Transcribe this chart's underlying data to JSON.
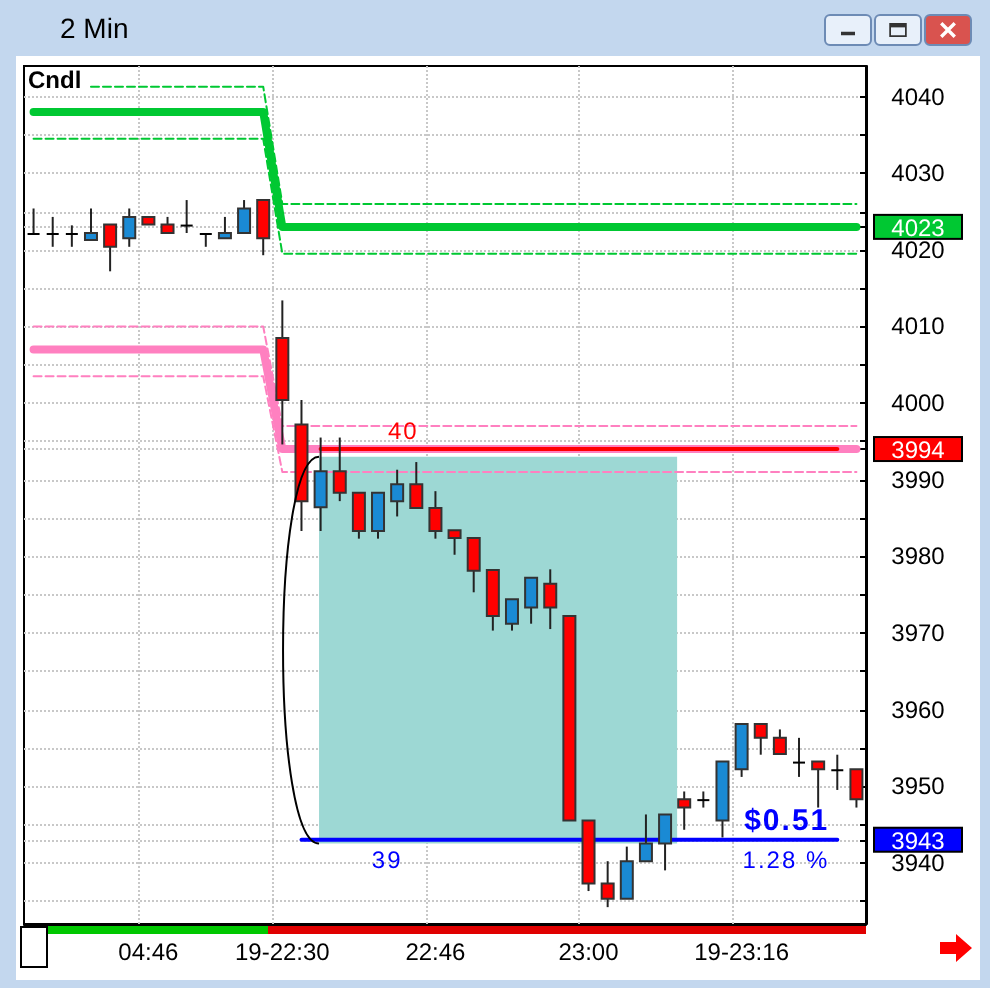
{
  "chart_data": {
    "type": "candlestick",
    "title": "2 Min",
    "subtitle": "Cndl",
    "categories": [
      null,
      null,
      null,
      null,
      null,
      null,
      "04:46",
      null,
      null,
      null,
      null,
      null,
      null,
      "19-22:30",
      null,
      null,
      null,
      null,
      null,
      null,
      null,
      "22:46",
      null,
      null,
      null,
      null,
      null,
      null,
      null,
      "23:00",
      null,
      null,
      null,
      null,
      null,
      null,
      null,
      "19-23:16",
      null,
      null,
      null,
      null,
      null,
      null
    ],
    "ylim": [
      3932,
      4044
    ],
    "yticks": [
      {
        "value": 3935,
        "label": null
      },
      3940,
      {
        "value": 3943,
        "label": "3943"
      },
      {
        "value": 3945,
        "label": null
      },
      3950,
      {
        "value": 3955,
        "label": null
      },
      3960,
      {
        "value": 3965,
        "label": null
      },
      3970,
      {
        "value": 3975,
        "label": null
      },
      3980,
      {
        "value": 3985,
        "label": null
      },
      3990,
      {
        "value": 3994,
        "label": "3994"
      },
      {
        "value": 3995,
        "label": null
      },
      4000,
      {
        "value": 4005,
        "label": null
      },
      4010,
      {
        "value": 4015,
        "label": null
      },
      4020,
      {
        "value": 4023,
        "label": "4023"
      },
      {
        "value": 4025,
        "label": null
      },
      4030,
      {
        "value": 4035,
        "label": null
      },
      4040
    ],
    "grid": true,
    "marker": "none",
    "bands": [
      {
        "axis": "y",
        "from": 3942.5,
        "to": 3993,
        "color": "#9dd8d4"
      }
    ],
    "annotations": [
      {
        "text": "40",
        "y": 3994
      },
      {
        "text": "39",
        "y": 3943
      },
      {
        "text": "$0.51",
        "y": 3943
      },
      {
        "text": "1.28 %",
        "y": 3943
      }
    ],
    "colors": [
      "#000000",
      "#000000",
      "#000000",
      "#1a8ad4",
      "#ff0000",
      "#1a8ad4",
      "#ff0000",
      "#ff0000",
      "#000000",
      "#000000",
      "#1a8ad4",
      "#1a8ad4",
      "#ff0000",
      "#ff0000",
      "#ff0000",
      "#1a8ad4",
      "#ff0000",
      "#ff0000",
      "#1a8ad4",
      "#1a8ad4",
      "#ff0000",
      "#ff0000",
      "#ff0000",
      "#ff0000",
      "#ff0000",
      "#1a8ad4",
      "#1a8ad4",
      "#ff0000",
      "#ff0000",
      "#ff0000",
      "#ff0000",
      "#1a8ad4",
      "#1a8ad4",
      "#1a8ad4",
      "#ff0000",
      "#000000",
      "#1a8ad4",
      "#1a8ad4",
      "#ff0000",
      "#ff0000",
      "#000000",
      "#ff0000",
      "#000000",
      "#ff0000"
    ],
    "ohlc": [
      [
        4022.2,
        4025.4,
        4022.2,
        4022.2
      ],
      [
        4022.2,
        4024.3,
        4020.4,
        4022.2
      ],
      [
        4022.2,
        4023.2,
        4020.4,
        4022.2
      ],
      [
        4021.3,
        4025.4,
        4021.3,
        4022.2
      ],
      [
        4023.3,
        4023.3,
        4017.2,
        4020.4
      ],
      [
        4021.5,
        4025.4,
        4020.4,
        4024.3
      ],
      [
        4024.3,
        4024.3,
        4023.3,
        4023.3
      ],
      [
        4023.3,
        4024.3,
        4022.2,
        4022.2
      ],
      [
        4023.3,
        4026.5,
        4022.2,
        4023.3
      ],
      [
        4022.2,
        4022.2,
        4020.4,
        4022.2
      ],
      [
        4021.5,
        4024.3,
        4021.5,
        4022.2
      ],
      [
        4022.2,
        4026.5,
        4022.2,
        4025.4
      ],
      [
        4026.5,
        4026.5,
        4019.3,
        4021.5
      ],
      [
        4008.5,
        4013.4,
        3994.6,
        4000.4
      ],
      [
        3997.2,
        4000.4,
        3983.3,
        3987.2
      ],
      [
        3986.4,
        3995.5,
        3983.3,
        3991.1
      ],
      [
        3991.1,
        3995.5,
        3987.2,
        3988.3
      ],
      [
        3988.3,
        3988.3,
        3982.3,
        3983.3
      ],
      [
        3983.3,
        3988.3,
        3982.3,
        3988.3
      ],
      [
        3987.2,
        3991.3,
        3985.2,
        3989.4
      ],
      [
        3989.4,
        3992.3,
        3986.3,
        3986.3
      ],
      [
        3986.3,
        3988.5,
        3982.3,
        3983.3
      ],
      [
        3983.4,
        3983.4,
        3980.2,
        3982.4
      ],
      [
        3982.4,
        3982.4,
        3975.3,
        3978.1
      ],
      [
        3978.2,
        3978.2,
        3970.3,
        3972.2
      ],
      [
        3971.2,
        3974.4,
        3970.3,
        3974.4
      ],
      [
        3973.3,
        3977.2,
        3971.2,
        3977.2
      ],
      [
        3976.4,
        3978.3,
        3970.5,
        3973.3
      ],
      [
        3972.2,
        3972.2,
        3945.5,
        3945.5
      ],
      [
        3945.5,
        3945.5,
        3936.3,
        3937.3
      ],
      [
        3937.3,
        3940.2,
        3934.2,
        3935.3
      ],
      [
        3935.3,
        3942.1,
        3935.3,
        3940.2
      ],
      [
        3940.2,
        3946.3,
        3940.2,
        3942.5
      ],
      [
        3942.5,
        3946.3,
        3939.0,
        3946.3
      ],
      [
        3948.3,
        3949.3,
        3944.3,
        3947.2
      ],
      [
        3948.3,
        3949.3,
        3947.2,
        3948.3
      ],
      [
        3945.5,
        3953.2,
        3943.3,
        3953.2
      ],
      [
        3952.2,
        3958.1,
        3951.2,
        3958.1
      ],
      [
        3958.1,
        3958.1,
        3954.1,
        3956.3
      ],
      [
        3956.3,
        3957.4,
        3954.2,
        3954.2
      ],
      [
        3953.2,
        3956.3,
        3951.2,
        3953.2
      ],
      [
        3953.2,
        3953.2,
        3947.2,
        3952.2
      ],
      [
        3952.2,
        3954.1,
        3949.5,
        3952.2
      ],
      [
        3952.2,
        3952.2,
        3947.2,
        3948.3
      ]
    ],
    "series": [
      {
        "type": "line",
        "color": "#00c832",
        "line_style": "dashed",
        "values": [
          null,
          null,
          null,
          4041.3,
          4041.3,
          4041.3,
          4041.3,
          4041.3,
          4041.3,
          4041.3,
          4041.3,
          4041.3,
          4041.3,
          4026,
          4026,
          4026,
          4026,
          4026,
          4026,
          4026,
          4026,
          4026,
          4026,
          4026,
          4026,
          4026,
          4026,
          4026,
          4026,
          4026,
          4026,
          4026,
          4026,
          4026,
          4026,
          4026,
          4026,
          4026,
          4026,
          4026,
          4026,
          4026,
          4026,
          4026
        ]
      },
      {
        "type": "line",
        "color": "#00c832",
        "line_style": "dashed",
        "values": [
          4034.5,
          4034.5,
          4034.5,
          4034.5,
          4034.5,
          4034.5,
          4034.5,
          4034.5,
          4034.5,
          4034.5,
          4034.5,
          4034.5,
          4034.5,
          4019.5,
          4019.5,
          4019.5,
          4019.5,
          4019.5,
          4019.5,
          4019.5,
          4019.5,
          4019.5,
          4019.5,
          4019.5,
          4019.5,
          4019.5,
          4019.5,
          4019.5,
          4019.5,
          4019.5,
          4019.5,
          4019.5,
          4019.5,
          4019.5,
          4019.5,
          4019.5,
          4019.5,
          4019.5,
          4019.5,
          4019.5,
          4019.5,
          4019.5,
          4019.5,
          4019.5
        ]
      },
      {
        "type": "line",
        "color": "#00c832",
        "line_style": "solid",
        "values": [
          4038,
          4038,
          4038,
          4038,
          4038,
          4038,
          4038,
          4038,
          4038,
          4038,
          4038,
          4038,
          4038,
          4023,
          4023,
          4023,
          4023,
          4023,
          4023,
          4023,
          4023,
          4023,
          4023,
          4023,
          4023,
          4023,
          4023,
          4023,
          4023,
          4023,
          4023,
          4023,
          4023,
          4023,
          4023,
          4023,
          4023,
          4023,
          4023,
          4023,
          4023,
          4023,
          4023,
          4023
        ]
      },
      {
        "type": "line",
        "color": "#ff80c0",
        "line_style": "dashed",
        "values": [
          4010,
          4010,
          4010,
          4010,
          4010,
          4010,
          4010,
          4010,
          4010,
          4010,
          4010,
          4010,
          4010,
          3997,
          3997,
          3997,
          3997,
          3997,
          3997,
          3997,
          3997,
          3997,
          3997,
          3997,
          3997,
          3997,
          3997,
          3997,
          3997,
          3997,
          3997,
          3997,
          3997,
          3997,
          3997,
          3997,
          3997,
          3997,
          3997,
          3997,
          3997,
          3997,
          3997,
          3997
        ]
      },
      {
        "type": "line",
        "color": "#ff80c0",
        "line_style": "dashed",
        "values": [
          4003.5,
          4003.5,
          4003.5,
          4003.5,
          4003.5,
          4003.5,
          4003.5,
          4003.5,
          4003.5,
          4003.5,
          4003.5,
          4003.5,
          4003.5,
          3991,
          3991,
          3991,
          3991,
          3991,
          3991,
          3991,
          3991,
          3991,
          3991,
          3991,
          3991,
          3991,
          3991,
          3991,
          3991,
          3991,
          3991,
          3991,
          3991,
          3991,
          3991,
          3991,
          3991,
          3991,
          3991,
          3991,
          3991,
          3991,
          3991,
          3991
        ]
      },
      {
        "type": "line",
        "color": "#ff80c0",
        "line_style": "solid",
        "values": [
          4007,
          4007,
          4007,
          4007,
          4007,
          4007,
          4007,
          4007,
          4007,
          4007,
          4007,
          4007,
          4007,
          3994,
          3994,
          3994,
          3994,
          3994,
          3994,
          3994,
          3994,
          3994,
          3994,
          3994,
          3994,
          3994,
          3994,
          3994,
          3994,
          3994,
          3994,
          3994,
          3994,
          3994,
          3994,
          3994,
          3994,
          3994,
          3994,
          3994,
          3994,
          3994,
          3994,
          3994
        ]
      },
      {
        "type": "line",
        "color": "#ff0000",
        "line_style": "solid",
        "values": [
          null,
          null,
          null,
          null,
          null,
          null,
          null,
          null,
          null,
          null,
          null,
          null,
          null,
          null,
          null,
          3994,
          3994,
          3994,
          3994,
          3994,
          3994,
          3994,
          3994,
          3994,
          3994,
          3994,
          3994,
          3994,
          3994,
          3994,
          3994,
          3994,
          3994,
          3994,
          3994,
          3994,
          3994,
          3994,
          3994,
          3994,
          3994,
          3994,
          3994,
          null
        ]
      },
      {
        "type": "line",
        "color": "#0000ff",
        "line_style": "solid",
        "values": [
          null,
          null,
          null,
          null,
          null,
          null,
          null,
          null,
          null,
          null,
          null,
          null,
          null,
          null,
          3943,
          3943,
          3943,
          3943,
          3943,
          3943,
          3943,
          3943,
          3943,
          3943,
          3943,
          3943,
          3943,
          3943,
          3943,
          3943,
          3943,
          3943,
          3943,
          3943,
          3943,
          3943,
          3943,
          3943,
          3943,
          3943,
          3943,
          3943,
          3943,
          null
        ]
      }
    ]
  }
}
